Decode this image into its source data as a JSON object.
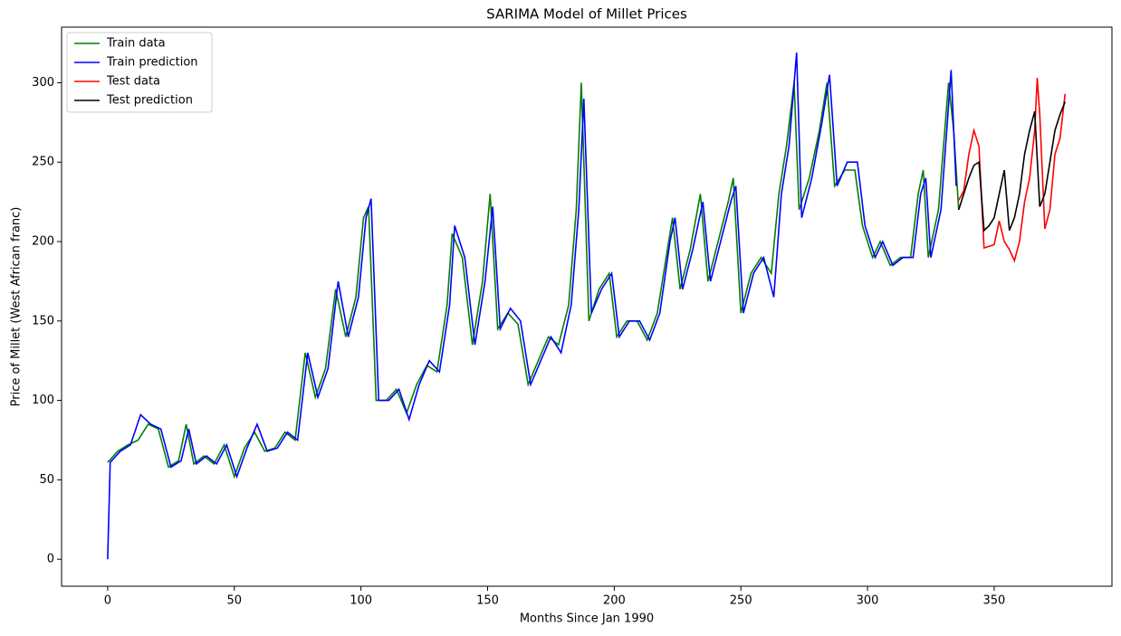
{
  "chart_data": {
    "type": "line",
    "title": "SARIMA Model of Millet Prices",
    "x_label": "Months Since Jan 1990",
    "y_label": "Price of Millet (West African franc)",
    "xlim": [
      -18.2,
      396.5
    ],
    "ylim": [
      -17,
      335
    ],
    "xticks": [
      0,
      50,
      100,
      150,
      200,
      250,
      300,
      350
    ],
    "yticks": [
      0,
      50,
      100,
      150,
      200,
      250,
      300
    ],
    "legend": "upper left",
    "series": [
      {
        "name": "Train data",
        "color": "#008000",
        "x": [
          0,
          4,
          8,
          12,
          16,
          20,
          24,
          28,
          31,
          34,
          38,
          42,
          46,
          50,
          54,
          58,
          62,
          66,
          70,
          74,
          78,
          82,
          86,
          90,
          94,
          98,
          101,
          103,
          106,
          110,
          114,
          118,
          122,
          126,
          130,
          134,
          136,
          140,
          144,
          148,
          151,
          154,
          158,
          162,
          166,
          170,
          174,
          178,
          182,
          185,
          187,
          190,
          194,
          198,
          201,
          205,
          209,
          213,
          217,
          221,
          223,
          226,
          230,
          234,
          237,
          241,
          245,
          247,
          250,
          254,
          258,
          262,
          265,
          268,
          271,
          273,
          277,
          281,
          284,
          287,
          291,
          295,
          298,
          302,
          305,
          309,
          313,
          317,
          320,
          322,
          324,
          328,
          332,
          334,
          336
        ],
        "values": [
          61,
          68,
          72,
          75,
          85,
          82,
          58,
          62,
          85,
          60,
          65,
          60,
          72,
          52,
          70,
          80,
          68,
          70,
          80,
          75,
          130,
          102,
          120,
          170,
          140,
          165,
          215,
          222,
          100,
          100,
          107,
          92,
          110,
          122,
          118,
          160,
          205,
          190,
          135,
          175,
          230,
          145,
          155,
          148,
          110,
          125,
          140,
          135,
          160,
          220,
          300,
          150,
          170,
          180,
          140,
          150,
          150,
          138,
          155,
          195,
          215,
          170,
          195,
          230,
          175,
          200,
          225,
          240,
          155,
          180,
          190,
          180,
          230,
          260,
          300,
          220,
          240,
          270,
          300,
          235,
          245,
          245,
          210,
          190,
          200,
          185,
          190,
          190,
          230,
          245,
          190,
          220,
          300,
          270,
          220
        ]
      },
      {
        "name": "Train prediction",
        "color": "#0000ff",
        "x": [
          0,
          1,
          5,
          9,
          13,
          17,
          21,
          25,
          29,
          32,
          35,
          39,
          43,
          47,
          51,
          55,
          59,
          63,
          67,
          71,
          75,
          79,
          83,
          87,
          91,
          95,
          99,
          102,
          104,
          107,
          111,
          115,
          119,
          123,
          127,
          131,
          135,
          137,
          141,
          145,
          149,
          152,
          155,
          159,
          163,
          167,
          171,
          175,
          179,
          183,
          186,
          188,
          191,
          195,
          199,
          202,
          206,
          210,
          214,
          218,
          222,
          224,
          227,
          231,
          235,
          238,
          242,
          246,
          248,
          251,
          255,
          259,
          263,
          266,
          269,
          272,
          274,
          278,
          282,
          285,
          288,
          292,
          296,
          299,
          303,
          306,
          310,
          314,
          318,
          321,
          323,
          325,
          329,
          333,
          335
        ],
        "values": [
          0,
          61,
          68,
          72,
          91,
          85,
          82,
          58,
          62,
          82,
          60,
          65,
          60,
          72,
          52,
          70,
          85,
          68,
          70,
          80,
          75,
          130,
          102,
          120,
          175,
          140,
          165,
          215,
          227,
          100,
          100,
          107,
          88,
          110,
          125,
          118,
          160,
          210,
          190,
          135,
          175,
          222,
          145,
          158,
          150,
          110,
          125,
          140,
          130,
          160,
          220,
          290,
          155,
          170,
          180,
          140,
          150,
          150,
          138,
          155,
          200,
          215,
          170,
          195,
          225,
          175,
          200,
          225,
          235,
          155,
          180,
          190,
          165,
          230,
          260,
          319,
          215,
          240,
          275,
          305,
          235,
          250,
          250,
          210,
          190,
          200,
          185,
          190,
          190,
          230,
          240,
          190,
          220,
          308,
          235
        ]
      },
      {
        "name": "Test data",
        "color": "#ff0000",
        "x": [
          336,
          338,
          340,
          342,
          344,
          346,
          348,
          350,
          352,
          354,
          356,
          358,
          360,
          362,
          364,
          366,
          367,
          368,
          370,
          372,
          374,
          376,
          378
        ],
        "values": [
          226,
          232,
          255,
          270,
          260,
          196,
          197,
          198,
          213,
          200,
          195,
          188,
          200,
          225,
          240,
          270,
          303,
          280,
          208,
          220,
          255,
          265,
          293
        ]
      },
      {
        "name": "Test prediction",
        "color": "#000000",
        "x": [
          336,
          338,
          340,
          342,
          344,
          346,
          348,
          350,
          352,
          354,
          356,
          358,
          360,
          362,
          364,
          366,
          368,
          370,
          372,
          374,
          376,
          378
        ],
        "values": [
          220,
          230,
          240,
          248,
          250,
          207,
          210,
          215,
          230,
          245,
          207,
          215,
          230,
          255,
          270,
          282,
          222,
          230,
          250,
          270,
          280,
          288
        ]
      }
    ]
  }
}
